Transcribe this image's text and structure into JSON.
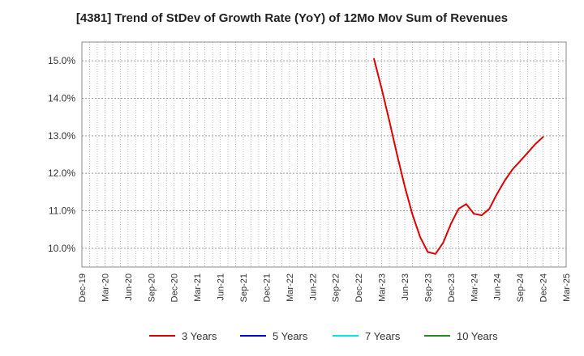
{
  "chart_data": {
    "type": "line",
    "title": "[4381]  Trend of StDev of Growth Rate (YoY) of 12Mo Mov Sum of Revenues",
    "xlabel": "",
    "ylabel": "",
    "x_ticks": [
      "Dec-19",
      "Mar-20",
      "Jun-20",
      "Sep-20",
      "Dec-20",
      "Mar-21",
      "Jun-21",
      "Sep-21",
      "Dec-21",
      "Mar-22",
      "Jun-22",
      "Sep-22",
      "Dec-22",
      "Mar-23",
      "Jun-23",
      "Sep-23",
      "Dec-23",
      "Mar-24",
      "Jun-24",
      "Sep-24",
      "Dec-24",
      "Mar-25"
    ],
    "y_ticks": [
      "10.0%",
      "11.0%",
      "12.0%",
      "13.0%",
      "14.0%",
      "15.0%"
    ],
    "ylim": [
      9.5,
      15.5
    ],
    "grid": true,
    "legend_position": "bottom",
    "series": [
      {
        "name": "3 Years",
        "color": "#dd0000",
        "points": [
          [
            "Feb-23",
            15.05
          ],
          [
            "Mar-23",
            14.25
          ],
          [
            "Apr-23",
            13.4
          ],
          [
            "May-23",
            12.5
          ],
          [
            "Jun-23",
            11.65
          ],
          [
            "Jul-23",
            10.9
          ],
          [
            "Aug-23",
            10.3
          ],
          [
            "Sep-23",
            9.9
          ],
          [
            "Oct-23",
            9.85
          ],
          [
            "Nov-23",
            10.15
          ],
          [
            "Dec-23",
            10.65
          ],
          [
            "Jan-24",
            11.05
          ],
          [
            "Feb-24",
            11.18
          ],
          [
            "Mar-24",
            10.92
          ],
          [
            "Apr-24",
            10.88
          ],
          [
            "May-24",
            11.05
          ],
          [
            "Jun-24",
            11.45
          ],
          [
            "Jul-24",
            11.8
          ],
          [
            "Aug-24",
            12.1
          ],
          [
            "Sep-24",
            12.32
          ],
          [
            "Oct-24",
            12.55
          ],
          [
            "Nov-24",
            12.78
          ],
          [
            "Dec-24",
            12.97
          ]
        ]
      },
      {
        "name": "5 Years",
        "color": "#0000cc",
        "points": []
      },
      {
        "name": "7 Years",
        "color": "#00e5e5",
        "points": []
      },
      {
        "name": "10 Years",
        "color": "#228b22",
        "points": []
      }
    ]
  }
}
